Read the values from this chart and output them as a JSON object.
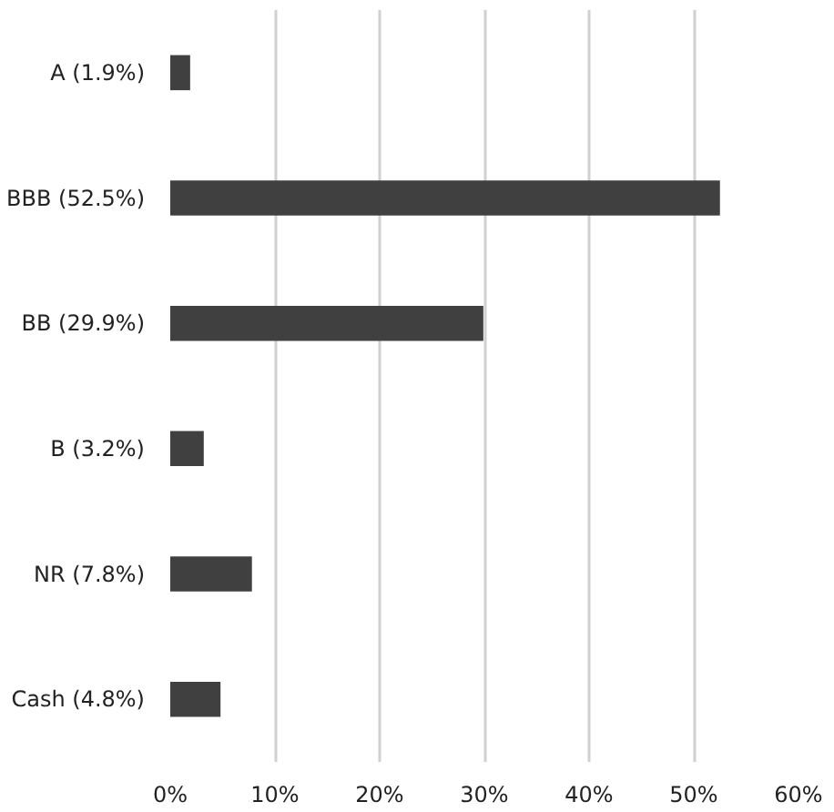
{
  "chart_data": {
    "type": "bar",
    "orientation": "horizontal",
    "categories": [
      "A (1.9%)",
      "BBB (52.5%)",
      "BB (29.9%)",
      "B (3.2%)",
      "NR (7.8%)",
      "Cash (4.8%)"
    ],
    "values": [
      1.9,
      52.5,
      29.9,
      3.2,
      7.8,
      4.8
    ],
    "color": "#404040",
    "xlim": [
      0,
      60
    ],
    "xticks": [
      {
        "value": 0,
        "label": "0%"
      },
      {
        "value": 10,
        "label": "10%"
      },
      {
        "value": 20,
        "label": "20%"
      },
      {
        "value": 30,
        "label": "30%"
      },
      {
        "value": 40,
        "label": "40%"
      },
      {
        "value": 50,
        "label": "50%"
      },
      {
        "value": 60,
        "label": "60%"
      }
    ],
    "grid": "x"
  }
}
